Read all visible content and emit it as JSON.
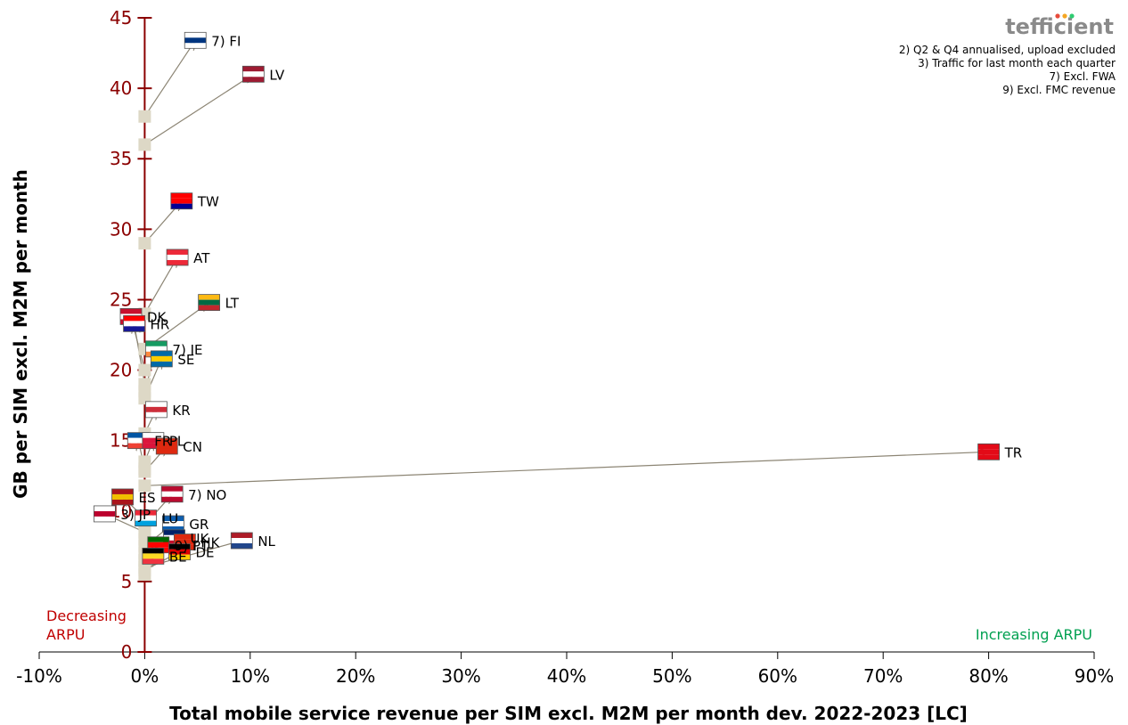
{
  "logo": "tefficient",
  "notes": [
    "2) Q2 & Q4 annualised, upload excluded",
    "3) Traffic for last month each quarter",
    "7) Excl. FWA",
    "9) Excl. FMC revenue"
  ],
  "corner_labels": {
    "decreasing_line1": "Decreasing",
    "decreasing_line2": "ARPU",
    "increasing": "Increasing ARPU"
  },
  "colors": {
    "y_axis": "#8b0000",
    "arrow": "#8c8574",
    "start_marker": "#ddd8c6",
    "decreasing": "#c00000",
    "increasing": "#00a050"
  },
  "chart_data": {
    "type": "scatter",
    "title": "",
    "xlabel": "Total mobile service revenue per SIM excl. M2M per month dev. 2022-2023 [LC]",
    "ylabel": "GB per SIM excl. M2M per month",
    "xlim": [
      -0.1,
      0.9
    ],
    "ylim": [
      0,
      45
    ],
    "x_ticks": [
      -0.1,
      0,
      0.1,
      0.2,
      0.3,
      0.4,
      0.5,
      0.6,
      0.7,
      0.8,
      0.9
    ],
    "x_tick_labels": [
      "-10%",
      "0%",
      "10%",
      "20%",
      "30%",
      "40%",
      "50%",
      "60%",
      "70%",
      "80%",
      "90%"
    ],
    "y_ticks": [
      0,
      5,
      10,
      15,
      20,
      25,
      30,
      35,
      40,
      45
    ],
    "y_tick_labels": [
      "0",
      "5",
      "10",
      "15",
      "20",
      "25",
      "30",
      "35",
      "40",
      "45"
    ],
    "grid": false,
    "points": [
      {
        "label": "7) FI",
        "x": 0.048,
        "y": 43.4,
        "y_2022": 38.0
      },
      {
        "label": "LV",
        "x": 0.103,
        "y": 41.0,
        "y_2022": 36.0
      },
      {
        "label": "TW",
        "x": 0.035,
        "y": 32.0,
        "y_2022": 29.0
      },
      {
        "label": "AT",
        "x": 0.031,
        "y": 28.0,
        "y_2022": 24.0
      },
      {
        "label": "LT",
        "x": 0.061,
        "y": 24.8,
        "y_2022": 21.5
      },
      {
        "label": "DK",
        "x": -0.013,
        "y": 23.8,
        "y_2022": 20.0
      },
      {
        "label": "HR",
        "x": -0.01,
        "y": 23.3,
        "y_2022": 19.0
      },
      {
        "label": "7) IE",
        "x": 0.011,
        "y": 21.5,
        "y_2022": 18.5
      },
      {
        "label": "SE",
        "x": 0.016,
        "y": 20.8,
        "y_2022": 18.0
      },
      {
        "label": "KR",
        "x": 0.011,
        "y": 17.2,
        "y_2022": 15.5
      },
      {
        "label": "FR",
        "x": -0.006,
        "y": 15.0,
        "y_2022": 13.0
      },
      {
        "label": "PL",
        "x": 0.008,
        "y": 15.0,
        "y_2022": 13.5
      },
      {
        "label": "CN",
        "x": 0.021,
        "y": 14.6,
        "y_2022": 12.8
      },
      {
        "label": "TR",
        "x": 0.8,
        "y": 14.2,
        "y_2022": 11.8
      },
      {
        "label": "ES",
        "x": -0.021,
        "y": 11.0,
        "y_2022": 9.5
      },
      {
        "label": "7) NO",
        "x": 0.026,
        "y": 11.2,
        "y_2022": 9.0
      },
      {
        "label": "3) JP",
        "x": -0.038,
        "y": 9.8,
        "y_2022": 8.5
      },
      {
        "label": "LU",
        "x": 0.001,
        "y": 9.5,
        "y_2022": 8.0
      },
      {
        "label": "GR",
        "x": 0.027,
        "y": 9.1,
        "y_2022": 7.5
      },
      {
        "label": "UK",
        "x": 0.028,
        "y": 8.1,
        "y_2022": 7.0
      },
      {
        "label": "HK",
        "x": 0.038,
        "y": 7.8,
        "y_2022": 6.5
      },
      {
        "label": "NL",
        "x": 0.092,
        "y": 7.9,
        "y_2022": 6.0
      },
      {
        "label": "9) PT",
        "x": 0.013,
        "y": 7.6,
        "y_2022": 6.5
      },
      {
        "label": "DE",
        "x": 0.033,
        "y": 7.1,
        "y_2022": 5.8
      },
      {
        "label": "BE",
        "x": 0.008,
        "y": 6.8,
        "y_2022": 5.5
      }
    ]
  }
}
